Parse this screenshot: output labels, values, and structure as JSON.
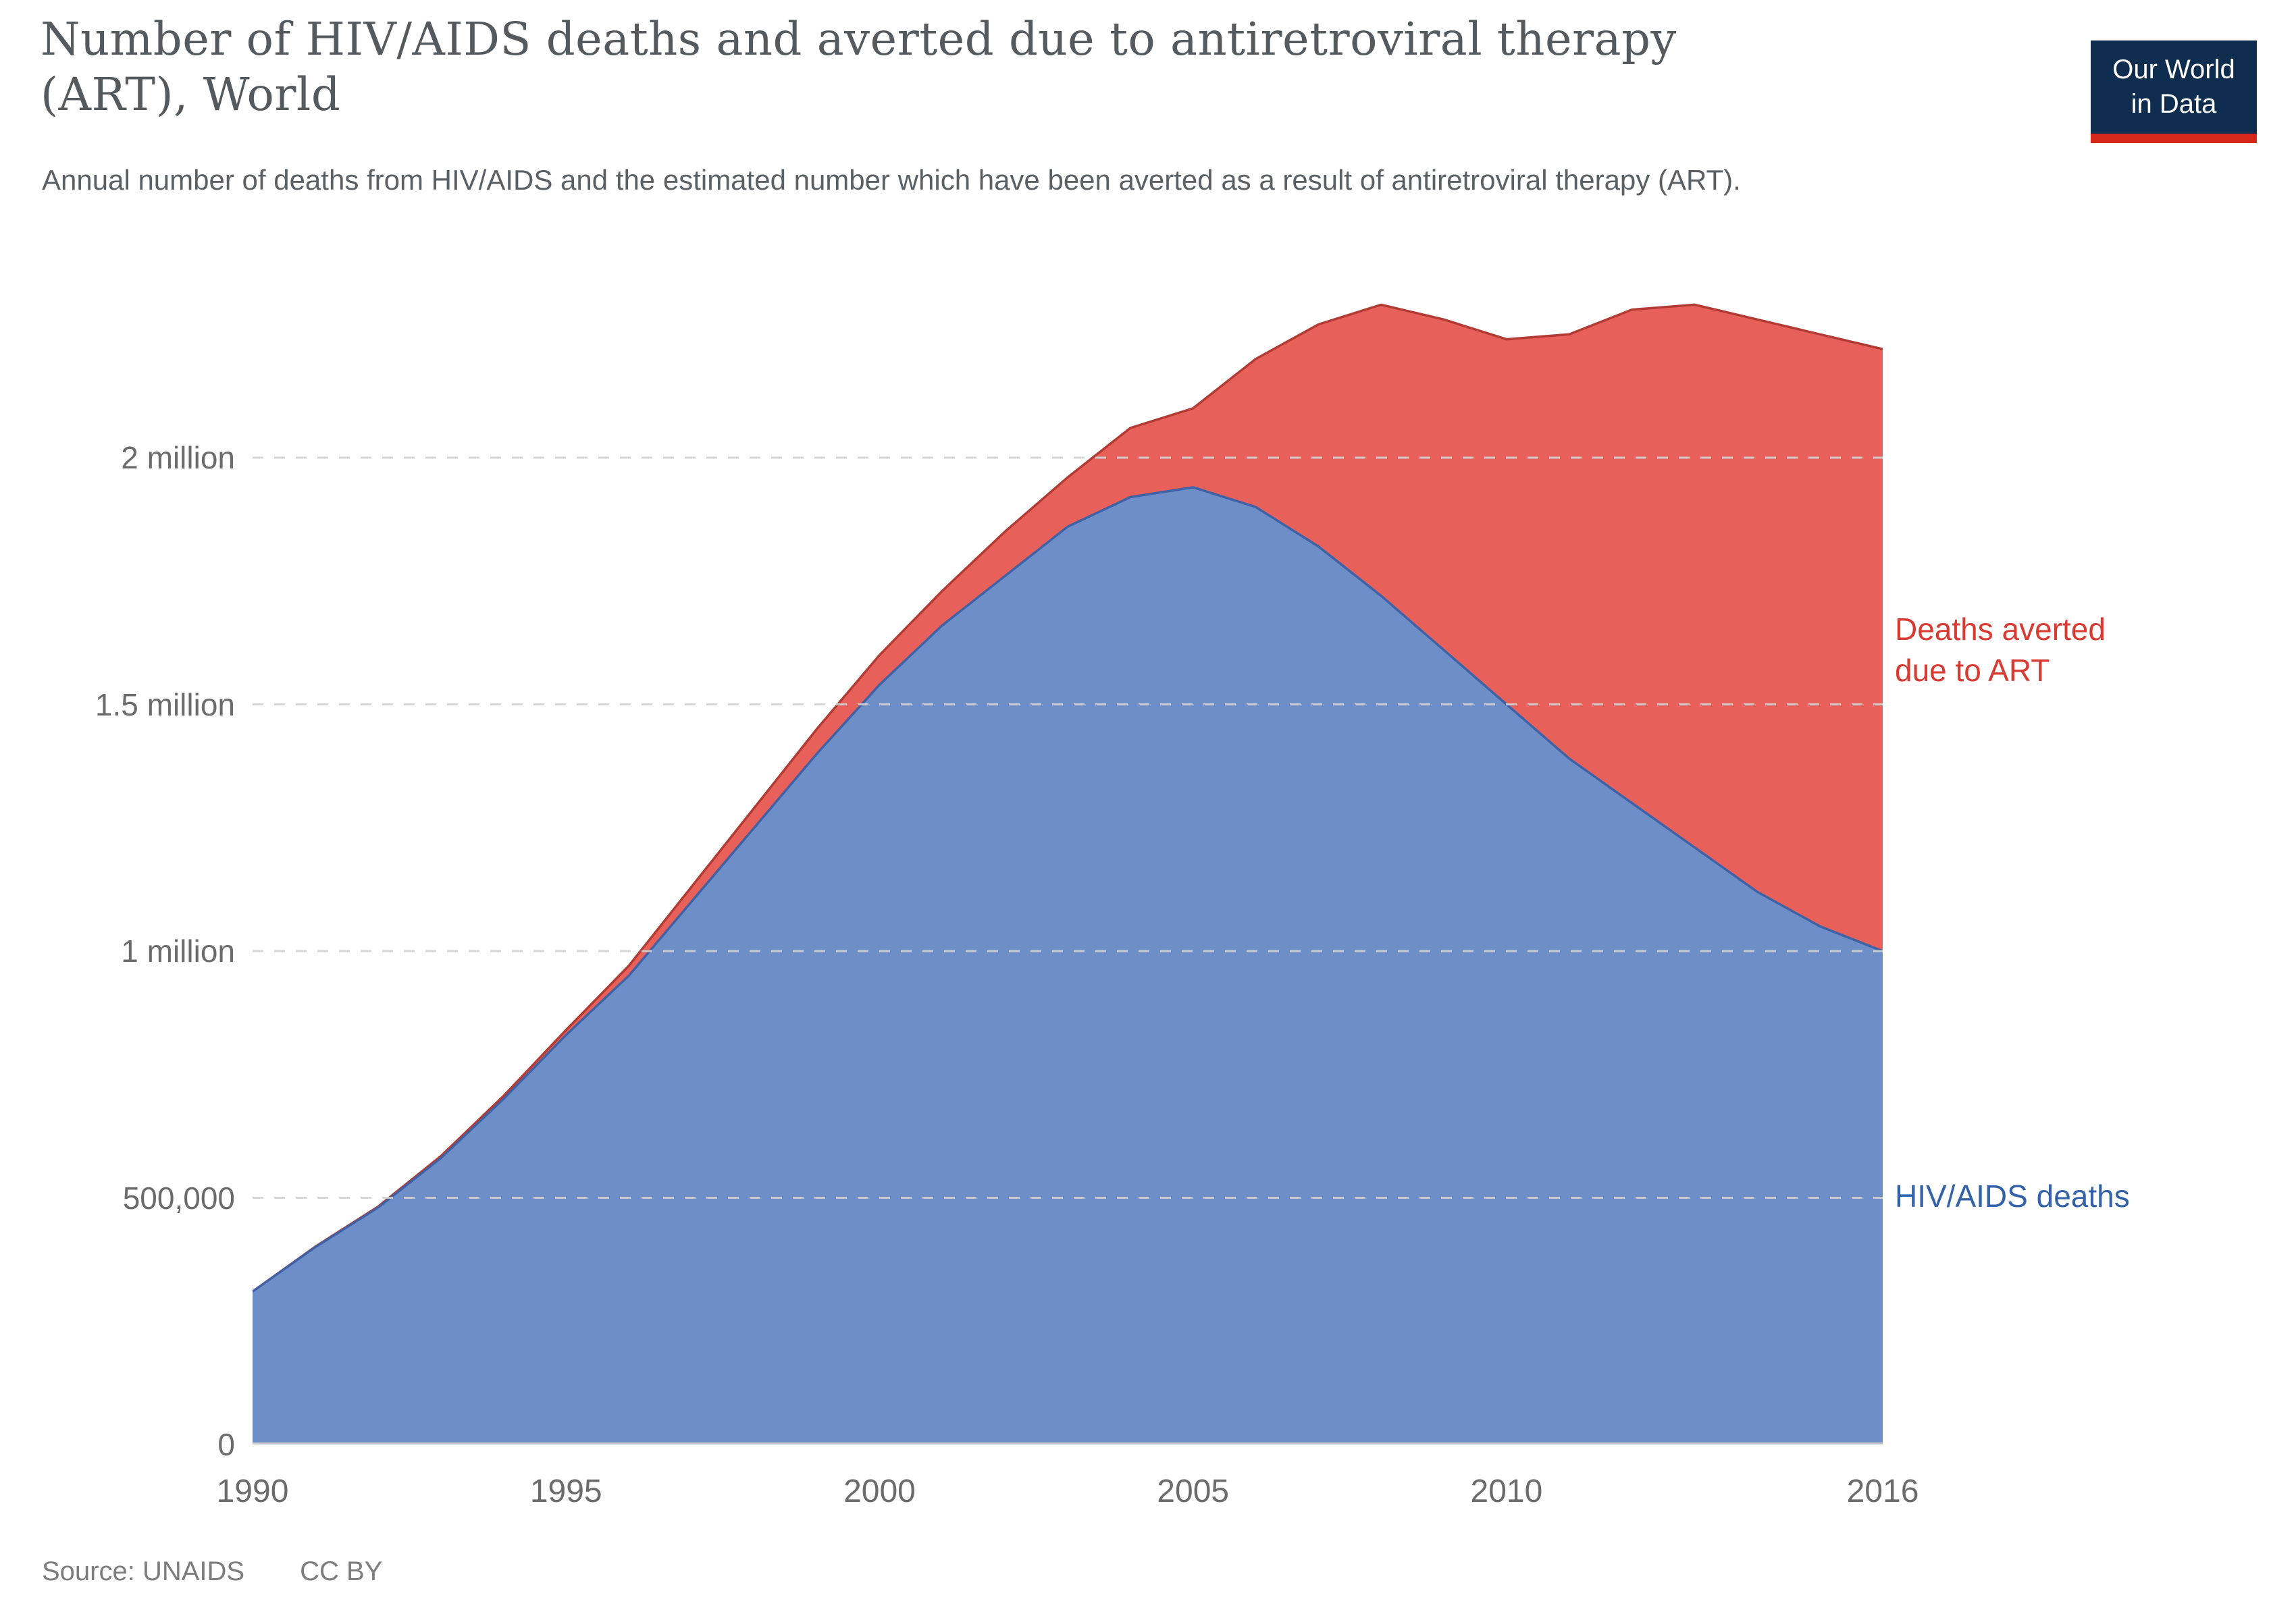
{
  "header": {
    "title_line1": "Number of HIV/AIDS deaths and averted due to antiretroviral therapy",
    "title_line2": "(ART), World",
    "subtitle": "Annual number of deaths from HIV/AIDS and the estimated number which have been averted as a result of antiretroviral therapy (ART)."
  },
  "logo": {
    "line1": "Our World",
    "line2": "in Data",
    "bg_color": "#0f2d4e",
    "bar_color": "#d5281b"
  },
  "legend": {
    "averted_line1": "Deaths averted",
    "averted_line2": "due to ART",
    "deaths_line1": "HIV/AIDS deaths",
    "averted_text_color": "#d93a31",
    "deaths_text_color": "#3462a8"
  },
  "footer": {
    "source": "Source: UNAIDS",
    "license": "CC BY"
  },
  "chart_data": {
    "type": "area",
    "stacked": true,
    "title": "Number of HIV/AIDS deaths and averted due to antiretroviral therapy (ART), World",
    "xlabel": "",
    "ylabel": "",
    "grid": "dashed horizontal",
    "legend_position": "right-annotations",
    "x": [
      1990,
      1991,
      1992,
      1993,
      1994,
      1995,
      1996,
      1997,
      1998,
      1999,
      2000,
      2001,
      2002,
      2003,
      2004,
      2005,
      2006,
      2007,
      2008,
      2009,
      2010,
      2011,
      2012,
      2013,
      2014,
      2015,
      2016
    ],
    "series": [
      {
        "name": "HIV/AIDS deaths",
        "fill_color": "#6d8ec7",
        "line_color": "#3f62a6",
        "values": [
          310000,
          400000,
          480000,
          580000,
          700000,
          830000,
          950000,
          1100000,
          1250000,
          1400000,
          1540000,
          1660000,
          1760000,
          1860000,
          1920000,
          1940000,
          1900000,
          1820000,
          1720000,
          1610000,
          1500000,
          1390000,
          1300000,
          1210000,
          1120000,
          1050000,
          1000000
        ]
      },
      {
        "name": "Deaths averted due to ART",
        "fill_color": "#e7615a",
        "line_color": "#b23b33",
        "values": [
          0,
          1000,
          2000,
          4000,
          6000,
          10000,
          20000,
          30000,
          40000,
          50000,
          60000,
          70000,
          90000,
          100000,
          140000,
          160000,
          300000,
          450000,
          590000,
          670000,
          740000,
          860000,
          1000000,
          1100000,
          1160000,
          1200000,
          1220000
        ]
      }
    ],
    "yticks": [
      {
        "value": 0,
        "label": "0"
      },
      {
        "value": 500000,
        "label": "500,000"
      },
      {
        "value": 1000000,
        "label": "1 million"
      },
      {
        "value": 1500000,
        "label": "1.5 million"
      },
      {
        "value": 2000000,
        "label": "2 million"
      }
    ],
    "xticks": [
      1990,
      1995,
      2000,
      2005,
      2010,
      2016
    ],
    "ylim": [
      0,
      2380000
    ],
    "xlim": [
      1990,
      2016
    ]
  }
}
